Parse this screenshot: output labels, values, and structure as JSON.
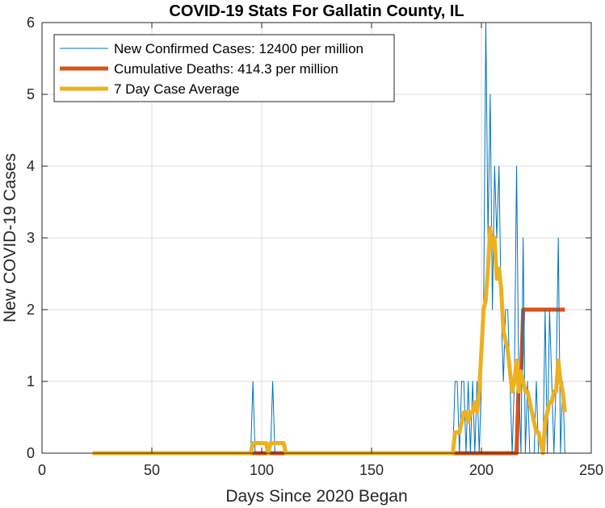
{
  "chart_data": {
    "type": "line",
    "title": "COVID-19 Stats For Gallatin County, IL",
    "xlabel": "Days Since 2020 Began",
    "ylabel": "New COVID-19 Cases",
    "xlim": [
      0,
      250
    ],
    "ylim": [
      0,
      6
    ],
    "xticks": [
      0,
      50,
      100,
      150,
      200,
      250
    ],
    "yticks": [
      0,
      1,
      2,
      3,
      4,
      5,
      6
    ],
    "grid": true,
    "legend_position": "top-left",
    "series": [
      {
        "name": "New Confirmed Cases: 12400 per million",
        "color": "#0072BD",
        "line_width": 1,
        "x": [
          23,
          95,
          96,
          97,
          104,
          105,
          106,
          187,
          188,
          189,
          190,
          191,
          192,
          193,
          194,
          195,
          196,
          197,
          198,
          199,
          200,
          201,
          202,
          203,
          204,
          205,
          206,
          207,
          208,
          209,
          210,
          211,
          212,
          213,
          214,
          215,
          216,
          217,
          218,
          219,
          220,
          221,
          222,
          223,
          224,
          225,
          226,
          227,
          228,
          229,
          230,
          231,
          232,
          233,
          234,
          235,
          236,
          237,
          238
        ],
        "y": [
          0,
          0,
          1,
          0,
          0,
          1,
          0,
          0,
          1,
          1,
          0,
          1,
          1,
          0,
          1,
          0,
          1,
          0,
          1,
          0,
          1,
          2,
          6,
          3,
          5,
          2,
          4,
          3,
          4,
          2,
          1,
          2,
          2,
          1,
          0,
          1,
          4,
          1,
          0,
          3,
          0,
          1,
          0,
          0,
          0,
          1,
          0,
          0,
          0,
          2,
          0,
          2,
          1,
          0,
          1,
          3,
          0,
          1,
          0
        ]
      },
      {
        "name": "Cumulative Deaths: 414.3 per million",
        "color": "#D95319",
        "line_width": 5,
        "x": [
          23,
          216,
          217,
          218,
          219,
          238
        ],
        "y": [
          0,
          0,
          1,
          1,
          2,
          2
        ]
      },
      {
        "name": "7 Day Case Average",
        "color": "#EDB120",
        "line_width": 5,
        "x": [
          23,
          95,
          96,
          102,
          103,
          104,
          110,
          111,
          187,
          188,
          190,
          191,
          192,
          193,
          194,
          195,
          196,
          197,
          198,
          199,
          200,
          201,
          202,
          203,
          204,
          205,
          206,
          207,
          208,
          209,
          210,
          211,
          212,
          213,
          214,
          215,
          216,
          217,
          218,
          219,
          220,
          221,
          222,
          223,
          224,
          225,
          226,
          227,
          228,
          229,
          230,
          231,
          232,
          233,
          234,
          235,
          236,
          237,
          238
        ],
        "y": [
          0,
          0,
          0.14,
          0.14,
          0,
          0.14,
          0.14,
          0,
          0,
          0.29,
          0.29,
          0.43,
          0.57,
          0.57,
          0.43,
          0.57,
          0.57,
          0.71,
          0.57,
          0.86,
          1.43,
          2.0,
          2.14,
          2.57,
          3.14,
          2.86,
          3.0,
          2.43,
          2.57,
          2.29,
          1.71,
          1.57,
          1.43,
          1.14,
          0.86,
          1.0,
          1.29,
          0.86,
          1.14,
          1.0,
          0.86,
          0.86,
          0.71,
          0.57,
          0.43,
          0.29,
          0.29,
          0.14,
          0.0,
          0.43,
          0.57,
          0.71,
          0.71,
          0.86,
          0.86,
          1.29,
          1.0,
          0.86,
          0.57
        ]
      }
    ]
  }
}
